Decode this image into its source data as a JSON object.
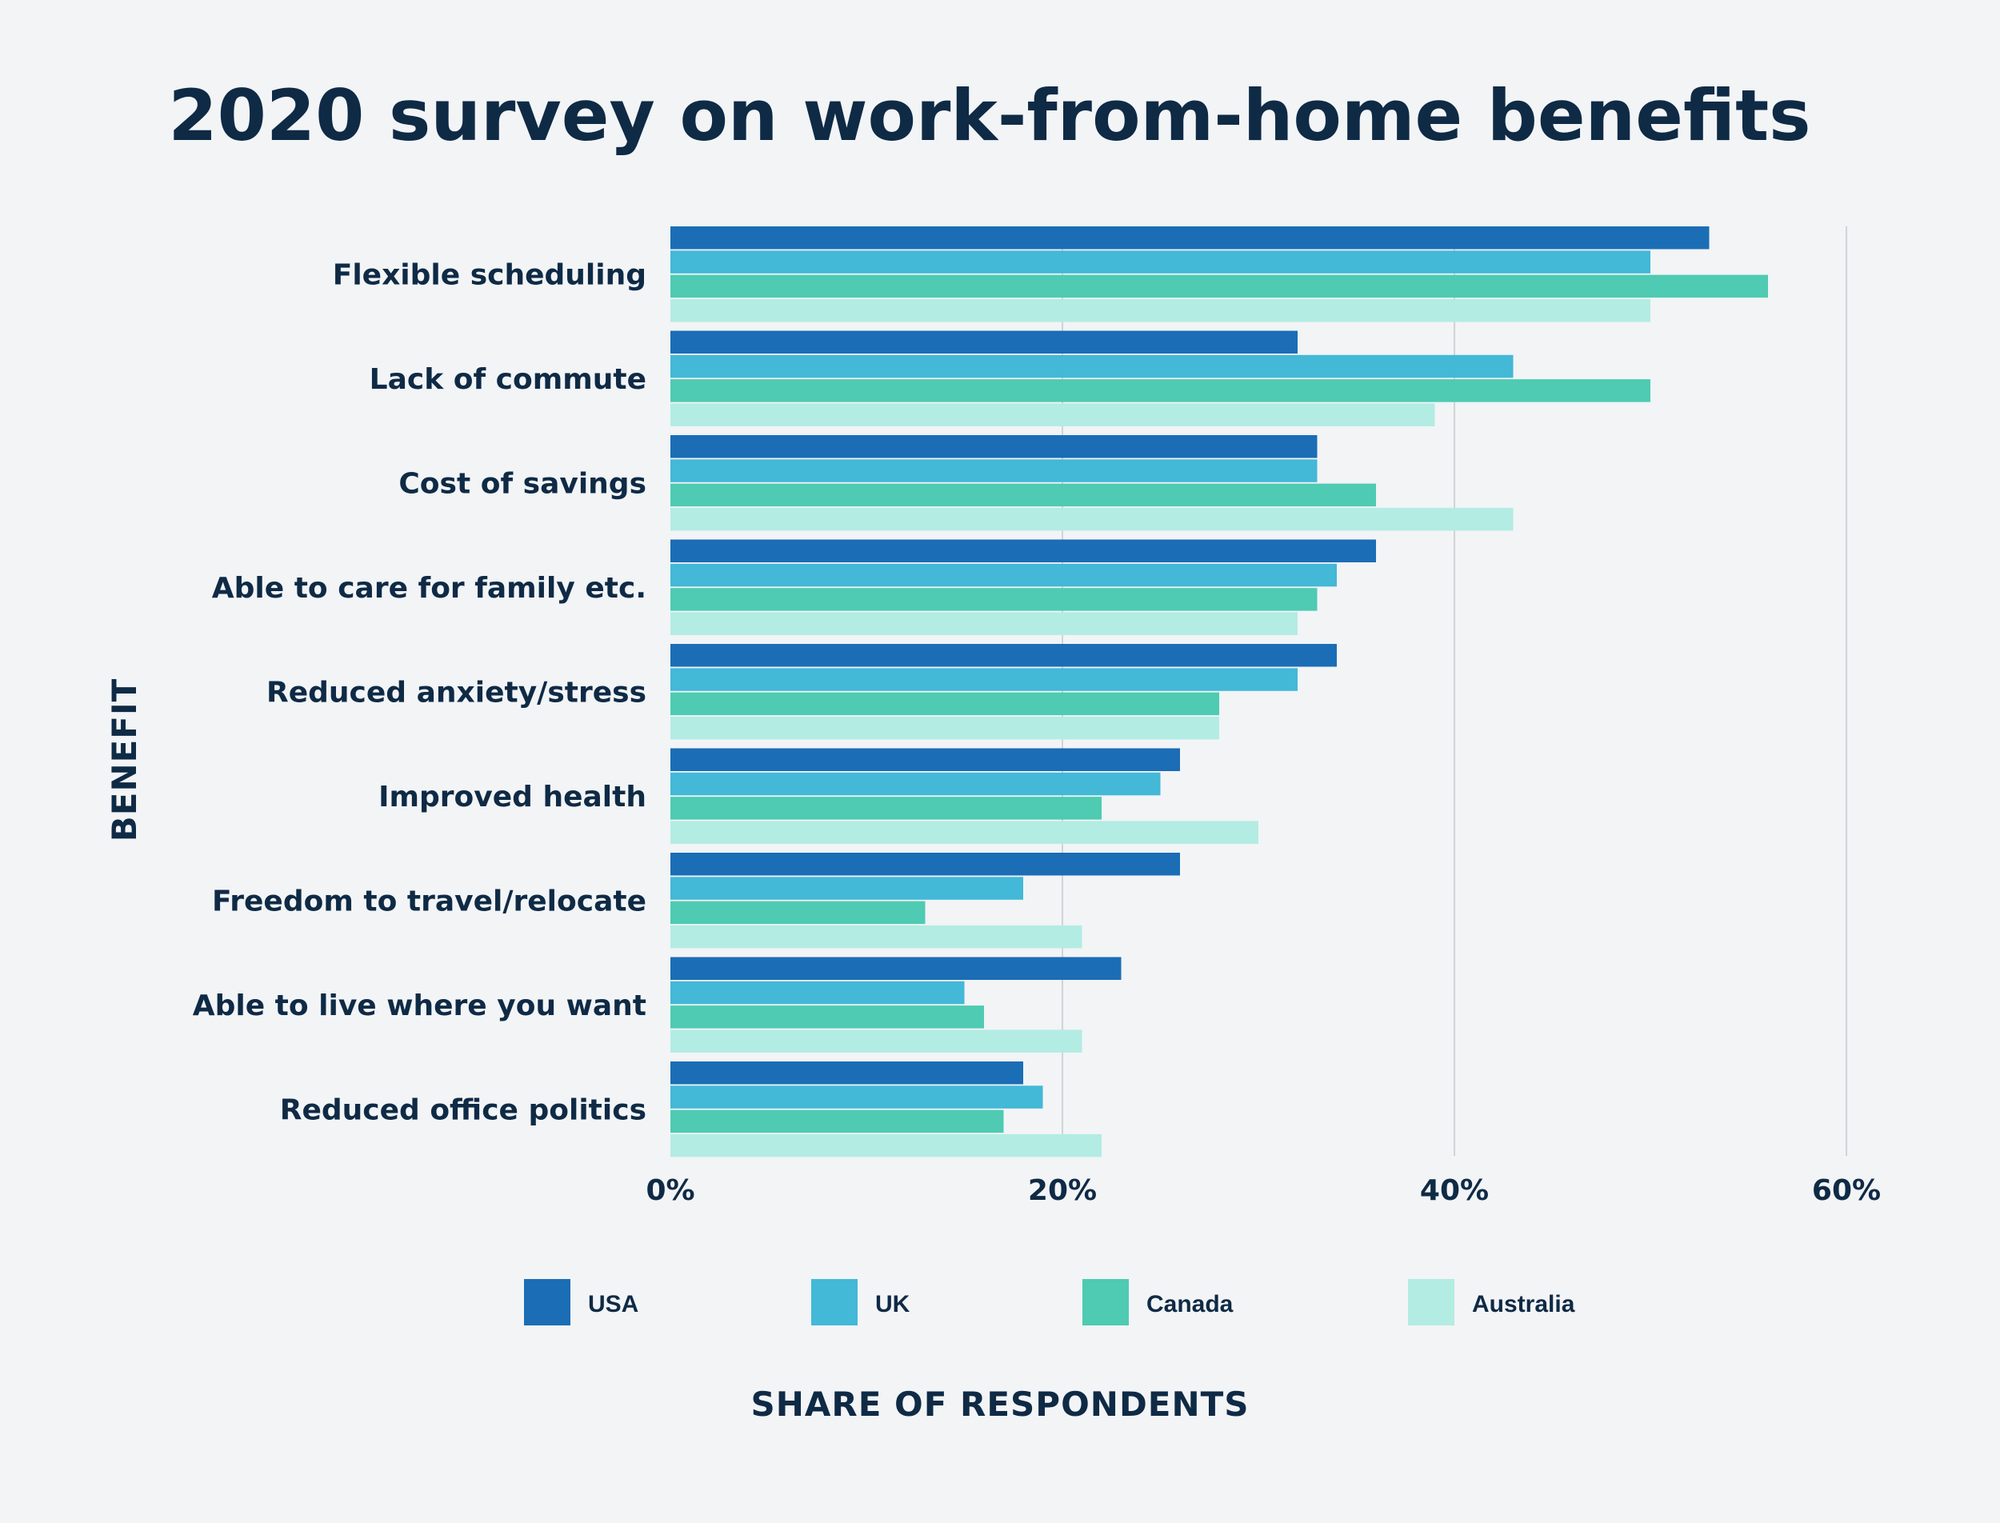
{
  "chart_data": {
    "type": "bar",
    "orientation": "horizontal",
    "title": "2020 survey on work-from-home benefits",
    "xlabel": "SHARE OF RESPONDENTS",
    "ylabel": "BENEFIT",
    "xlim": [
      0,
      60
    ],
    "x_ticks": [
      0,
      20,
      40,
      60
    ],
    "x_tick_labels": [
      "0%",
      "20%",
      "40%",
      "60%"
    ],
    "grid": "vertical",
    "legend_position": "bottom",
    "categories": [
      "Flexible scheduling",
      "Lack of commute",
      "Cost of savings",
      "Able to care for family etc.",
      "Reduced anxiety/stress",
      "Improved health",
      "Freedom to travel/relocate",
      "Able to live where you want",
      "Reduced office politics"
    ],
    "series": [
      {
        "name": "USA",
        "color": "#1b6db5",
        "values": [
          53,
          32,
          33,
          36,
          34,
          26,
          26,
          23,
          18
        ]
      },
      {
        "name": "UK",
        "color": "#43b8d7",
        "values": [
          50,
          43,
          33,
          34,
          32,
          25,
          18,
          15,
          19
        ]
      },
      {
        "name": "Canada",
        "color": "#4ecbb2",
        "values": [
          56,
          50,
          36,
          33,
          28,
          22,
          13,
          16,
          17
        ]
      },
      {
        "name": "Australia",
        "color": "#b3ece3",
        "values": [
          50,
          39,
          43,
          32,
          28,
          30,
          21,
          21,
          22
        ]
      }
    ]
  }
}
